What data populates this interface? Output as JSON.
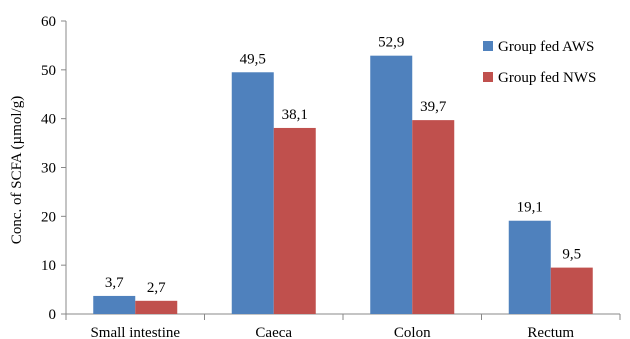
{
  "chart_data": {
    "type": "bar",
    "categories": [
      "Small intestine",
      "Caeca",
      "Colon",
      "Rectum"
    ],
    "series": [
      {
        "name": "Group fed AWS",
        "values": [
          3.7,
          49.5,
          52.9,
          19.1
        ],
        "labels": [
          "3,7",
          "49,5",
          "52,9",
          "19,1"
        ],
        "color": "#4f81bd"
      },
      {
        "name": "Group fed NWS",
        "values": [
          2.7,
          38.1,
          39.7,
          9.5
        ],
        "labels": [
          "2,7",
          "38,1",
          "39,7",
          "9,5"
        ],
        "color": "#c0504d"
      }
    ],
    "ylabel": "Conc. of SCFA (µmol/g)",
    "ylim": [
      0,
      60
    ],
    "yticks": [
      0,
      10,
      20,
      30,
      40,
      50,
      60
    ],
    "grid": false,
    "legend_position": "top-right"
  }
}
